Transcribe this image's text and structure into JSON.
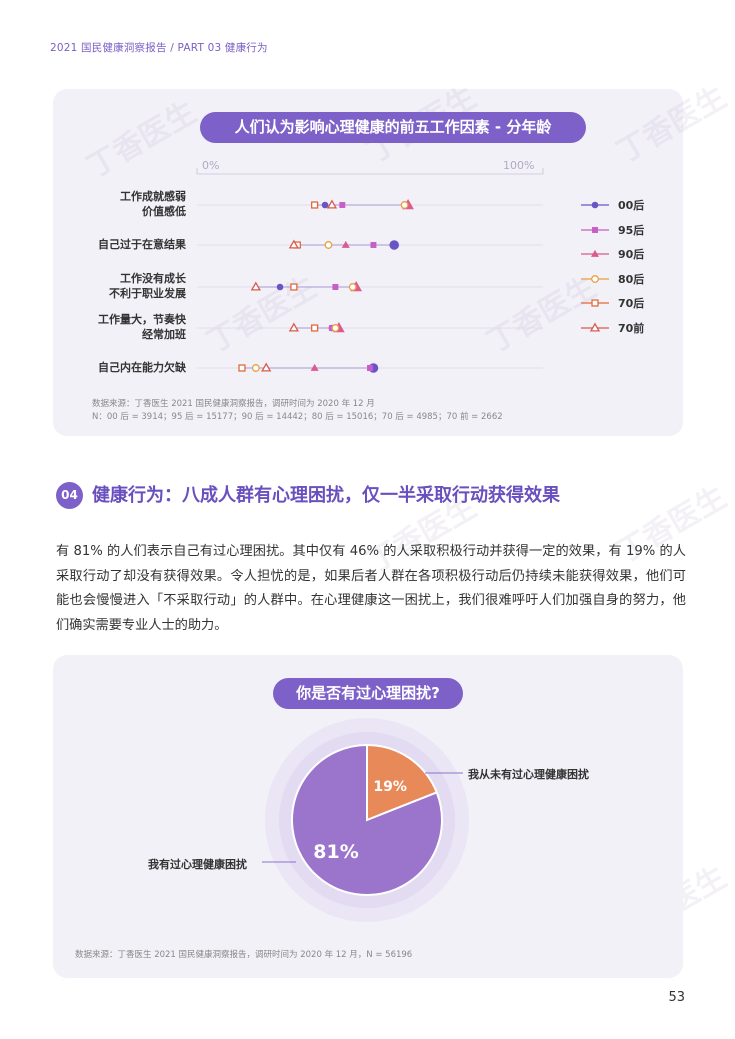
{
  "header": {
    "text": "2021 国民健康洞察报告 / PART 03 健康行为"
  },
  "watermark": "丁香医生",
  "chart1": {
    "title": "人们认为影响心理健康的前五工作因素 - 分年龄",
    "axis_start": "0%",
    "axis_end": "100%",
    "source_line1": "数据来源：丁香医生 2021 国民健康洞察报告，调研时间为 2020 年 12 月",
    "source_line2": "N：00 后 = 3914；95 后 = 15177；90 后 = 14442；80 后 = 15016；70 后 = 4985；70 前 = 2662"
  },
  "section": {
    "badge": "04",
    "title": "健康行为：八成人群有心理困扰，仅一半采取行动获得效果",
    "body": "有 81% 的人们表示自己有过心理困扰。其中仅有 46% 的人采取积极行动并获得一定的效果，有 19% 的人采取行动了却没有获得效果。令人担忧的是，如果后者人群在各项积极行动后仍持续未能获得效果，他们可能也会慢慢进入「不采取行动」的人群中。在心理健康这一困扰上，我们很难呼吁人们加强自身的努力，他们确实需要专业人士的助力。"
  },
  "chart2": {
    "title": "你是否有过心理困扰?",
    "source": "数据来源：丁香医生 2021 国民健康洞察报告，调研时间为 2020 年 12 月，N = 56196"
  },
  "page_number": "53",
  "colors": {
    "accent": "#7d61c9",
    "pie_yes": "#9b74cc",
    "pie_no": "#e8895a"
  },
  "chart_data": [
    {
      "type": "scatter",
      "title": "人们认为影响心理健康的前五工作因素 - 分年龄",
      "xlim": [
        0,
        100
      ],
      "x_unit": "%",
      "categories": [
        {
          "label_lines": [
            "工作成就感弱",
            "价值感低"
          ]
        },
        {
          "label_lines": [
            "自己过于在意结果"
          ]
        },
        {
          "label_lines": [
            "工作没有成长",
            "不利于职业发展"
          ]
        },
        {
          "label_lines": [
            "工作量大，节奏快",
            "经常加班"
          ]
        },
        {
          "label_lines": [
            "自己内在能力欠缺"
          ]
        }
      ],
      "series": [
        {
          "name": "00后",
          "marker": "filled-circle",
          "color": "#6a55c4",
          "values": [
            37,
            57,
            24,
            39,
            51
          ]
        },
        {
          "name": "95后",
          "marker": "filled-square",
          "color": "#c65ec6",
          "values": [
            42,
            51,
            40,
            39,
            50
          ]
        },
        {
          "name": "90后",
          "marker": "filled-triangle",
          "color": "#dc5a8c",
          "values": [
            61,
            43,
            46,
            41,
            34
          ]
        },
        {
          "name": "80后",
          "marker": "open-circle",
          "color": "#e8a040",
          "values": [
            60,
            38,
            45,
            40,
            17
          ]
        },
        {
          "name": "70后",
          "marker": "open-square",
          "color": "#e06a3a",
          "values": [
            34,
            29,
            28,
            34,
            13
          ]
        },
        {
          "name": "70前",
          "marker": "open-triangle",
          "color": "#d95a4a",
          "values": [
            39,
            28,
            17,
            28,
            20
          ]
        }
      ]
    },
    {
      "type": "pie",
      "title": "你是否有过心理困扰?",
      "slices": [
        {
          "label": "我有过心理健康困扰",
          "value": 81,
          "display": "81%",
          "color": "#9b74cc"
        },
        {
          "label": "我从未有过心理健康困扰",
          "value": 19,
          "display": "19%",
          "color": "#e8895a"
        }
      ]
    }
  ]
}
